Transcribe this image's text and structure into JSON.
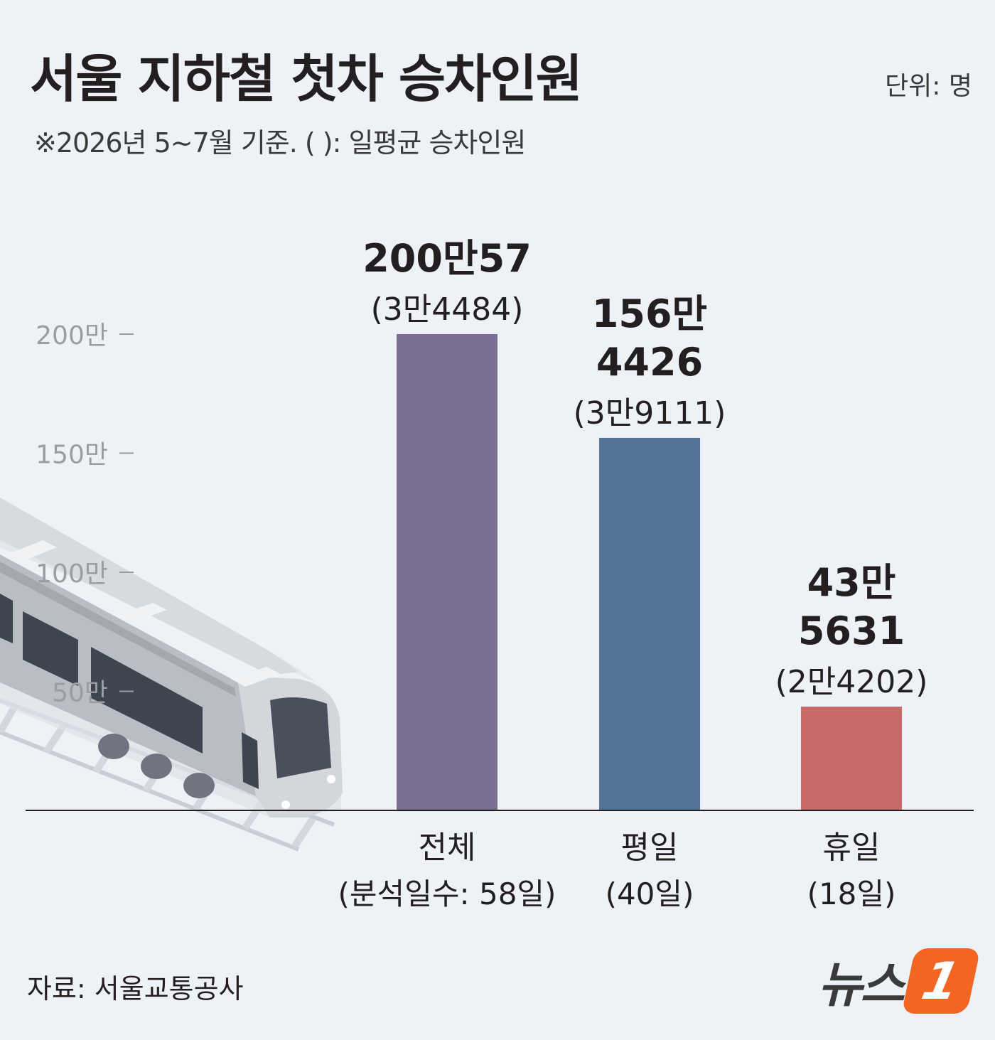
{
  "header": {
    "title": "서울 지하철 첫차 승차인원",
    "unit": "단위: 명",
    "note": "※2026년 5~7월 기준. ( ): 일평균 승차인원"
  },
  "chart_data": {
    "type": "bar",
    "categories": [
      "전체",
      "평일",
      "휴일"
    ],
    "category_sublabels": [
      "(분석일수: 58일)",
      "(40일)",
      "(18일)"
    ],
    "values": [
      2000057,
      1564426,
      435631
    ],
    "value_labels": [
      [
        "200만57"
      ],
      [
        "156만",
        "4426"
      ],
      [
        "43만",
        "5631"
      ]
    ],
    "daily_average_labels": [
      "(3만4484)",
      "(3만9111)",
      "(2만4202)"
    ],
    "daily_average_values": [
      34484,
      39111,
      24202
    ],
    "bar_colors": [
      "#7a6e92",
      "#527497",
      "#c96a6a"
    ],
    "y_ticks": [
      {
        "value": 500000,
        "label": "50만"
      },
      {
        "value": 1000000,
        "label": "100만"
      },
      {
        "value": 1500000,
        "label": "150만"
      },
      {
        "value": 2000000,
        "label": "200만"
      }
    ],
    "ylim": [
      0,
      2000000
    ],
    "grid": false,
    "legend": "none"
  },
  "footer": {
    "source": "자료: 서울교통공사",
    "logo_text": "뉴스",
    "logo_mark": "1"
  },
  "colors": {
    "background": "#eef2f6",
    "axis": "#231f20",
    "tick_text": "#9a9da2",
    "logo_accent": "#f26522"
  },
  "illustration": "subway-train-icon"
}
